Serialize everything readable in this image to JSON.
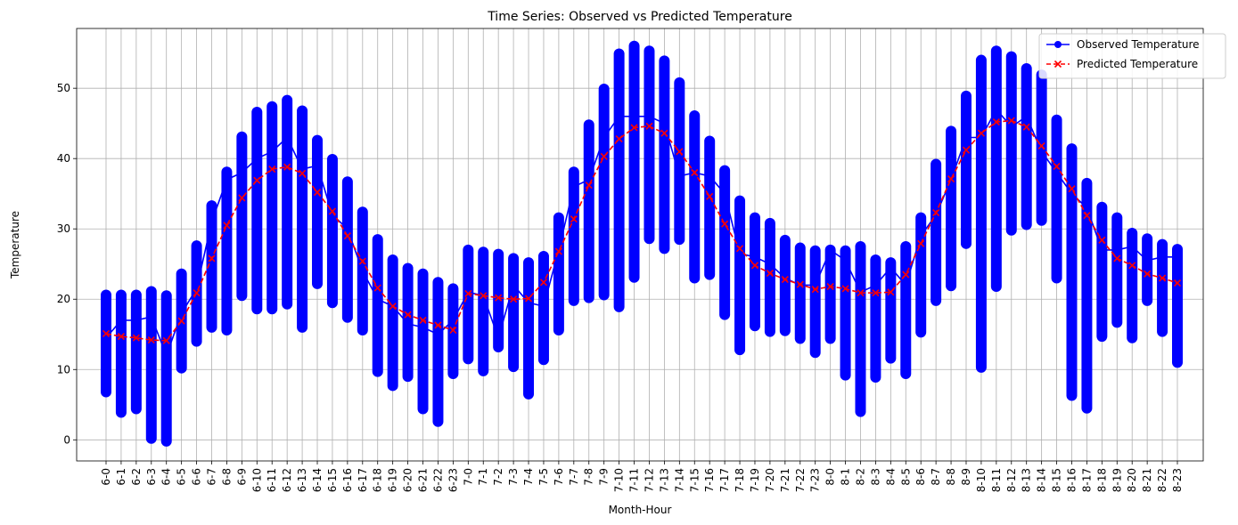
{
  "chart_data": {
    "type": "line",
    "title": "Time Series: Observed vs Predicted Temperature",
    "xlabel": "Month-Hour",
    "ylabel": "Temperature",
    "ylim": [
      -3,
      58.5
    ],
    "yticks": [
      0,
      10,
      20,
      30,
      40,
      50
    ],
    "grid": true,
    "legend_position": "top-right",
    "categories": [
      "6-0",
      "6-1",
      "6-2",
      "6-3",
      "6-4",
      "6-5",
      "6-6",
      "6-7",
      "6-8",
      "6-9",
      "6-10",
      "6-11",
      "6-12",
      "6-13",
      "6-14",
      "6-15",
      "6-16",
      "6-17",
      "6-18",
      "6-19",
      "6-20",
      "6-21",
      "6-22",
      "6-23",
      "7-0",
      "7-1",
      "7-2",
      "7-3",
      "7-4",
      "7-5",
      "7-6",
      "7-7",
      "7-8",
      "7-9",
      "7-10",
      "7-11",
      "7-12",
      "7-13",
      "7-14",
      "7-15",
      "7-16",
      "7-17",
      "7-18",
      "7-19",
      "7-20",
      "7-21",
      "7-22",
      "7-23",
      "8-0",
      "8-1",
      "8-2",
      "8-3",
      "8-4",
      "8-5",
      "8-6",
      "8-7",
      "8-8",
      "8-9",
      "8-10",
      "8-11",
      "8-12",
      "8-13",
      "8-14",
      "8-15",
      "8-16",
      "8-17",
      "8-18",
      "8-19",
      "8-20",
      "8-21",
      "8-22",
      "8-23"
    ],
    "series": [
      {
        "name": "Observed Temperature",
        "color": "#0000ff",
        "marker": "circle",
        "line_style": "solid",
        "ranges": [
          [
            6.8,
            20.6
          ],
          [
            3.9,
            20.6
          ],
          [
            4.4,
            20.6
          ],
          [
            0.2,
            21.1
          ],
          [
            -0.2,
            20.5
          ],
          [
            10.2,
            23.6
          ],
          [
            14.0,
            27.6
          ],
          [
            16.0,
            33.3
          ],
          [
            15.6,
            38.1
          ],
          [
            20.5,
            43.1
          ],
          [
            18.6,
            46.6
          ],
          [
            18.6,
            47.4
          ],
          [
            19.3,
            48.3
          ],
          [
            16.0,
            46.8
          ],
          [
            22.2,
            42.6
          ],
          [
            19.5,
            39.9
          ],
          [
            17.4,
            36.7
          ],
          [
            15.6,
            32.4
          ],
          [
            9.7,
            28.5
          ],
          [
            7.7,
            25.6
          ],
          [
            9.0,
            24.4
          ],
          [
            4.4,
            23.6
          ],
          [
            2.6,
            22.4
          ],
          [
            9.4,
            21.5
          ],
          [
            11.5,
            27.0
          ],
          [
            9.8,
            26.7
          ],
          [
            13.2,
            26.4
          ],
          [
            10.4,
            25.8
          ],
          [
            6.5,
            25.2
          ],
          [
            11.4,
            26.1
          ],
          [
            15.6,
            31.6
          ],
          [
            19.8,
            38.1
          ],
          [
            20.2,
            44.8
          ],
          [
            20.6,
            49.9
          ],
          [
            18.9,
            54.9
          ],
          [
            23.1,
            56.0
          ],
          [
            28.6,
            55.3
          ],
          [
            27.2,
            53.9
          ],
          [
            28.5,
            50.8
          ],
          [
            23.0,
            46.1
          ],
          [
            23.5,
            42.5
          ],
          [
            17.8,
            38.3
          ],
          [
            12.8,
            34.0
          ],
          [
            16.2,
            31.6
          ],
          [
            15.4,
            30.8
          ],
          [
            15.5,
            28.4
          ],
          [
            14.4,
            27.3
          ],
          [
            12.4,
            26.9
          ],
          [
            14.4,
            27.0
          ],
          [
            9.2,
            26.9
          ],
          [
            4.0,
            27.5
          ],
          [
            8.9,
            25.6
          ],
          [
            11.6,
            25.2
          ],
          [
            9.4,
            27.5
          ],
          [
            15.3,
            31.6
          ],
          [
            19.8,
            39.2
          ],
          [
            21.9,
            43.9
          ],
          [
            27.9,
            48.9
          ],
          [
            10.3,
            54.0
          ],
          [
            21.8,
            55.3
          ],
          [
            29.8,
            54.5
          ],
          [
            30.6,
            52.8
          ],
          [
            31.2,
            51.9
          ],
          [
            23.0,
            45.5
          ],
          [
            6.3,
            41.4
          ],
          [
            4.5,
            36.5
          ],
          [
            14.7,
            33.1
          ],
          [
            16.7,
            31.6
          ],
          [
            14.5,
            29.4
          ],
          [
            19.8,
            28.6
          ],
          [
            15.4,
            27.8
          ],
          [
            11.0,
            27.1
          ]
        ],
        "values": [
          14.5,
          17.0,
          17.0,
          17.5,
          12.0,
          18.0,
          21.5,
          31.0,
          37.0,
          38.0,
          40.0,
          41.0,
          43.0,
          38.5,
          39.0,
          32.0,
          30.0,
          24.0,
          20.0,
          19.0,
          16.5,
          16.0,
          15.0,
          17.0,
          21.0,
          20.5,
          14.5,
          22.0,
          19.5,
          19.0,
          27.0,
          36.0,
          37.0,
          43.0,
          46.0,
          46.0,
          46.0,
          45.0,
          37.5,
          38.0,
          37.5,
          35.0,
          26.5,
          26.0,
          25.0,
          23.0,
          22.0,
          22.0,
          27.0,
          25.5,
          21.0,
          22.0,
          24.5,
          22.0,
          29.0,
          32.0,
          37.0,
          43.0,
          43.0,
          47.0,
          44.5,
          46.0,
          41.0,
          38.0,
          35.0,
          33.0,
          27.0,
          27.0,
          27.5,
          25.5,
          26.0,
          26.0
        ]
      },
      {
        "name": "Predicted Temperature",
        "color": "#ff0000",
        "marker": "x",
        "line_style": "dashed",
        "values": [
          15.1,
          14.7,
          14.5,
          14.2,
          14.1,
          16.9,
          20.9,
          25.8,
          30.5,
          34.4,
          36.9,
          38.5,
          38.8,
          37.9,
          35.2,
          32.5,
          29.0,
          25.4,
          21.6,
          19.0,
          17.8,
          17.0,
          16.3,
          15.6,
          20.8,
          20.5,
          20.2,
          20.0,
          20.1,
          22.4,
          26.8,
          31.4,
          36.2,
          40.3,
          42.8,
          44.4,
          44.6,
          43.6,
          41.0,
          38.0,
          34.6,
          30.7,
          27.2,
          24.8,
          23.7,
          22.8,
          22.1,
          21.4,
          21.8,
          21.5,
          20.9,
          20.9,
          21.0,
          23.5,
          27.9,
          32.3,
          37.1,
          41.2,
          43.6,
          45.2,
          45.4,
          44.5,
          41.8,
          38.9,
          35.7,
          31.9,
          28.4,
          25.8,
          24.8,
          23.6,
          23.0,
          22.3
        ]
      }
    ]
  }
}
